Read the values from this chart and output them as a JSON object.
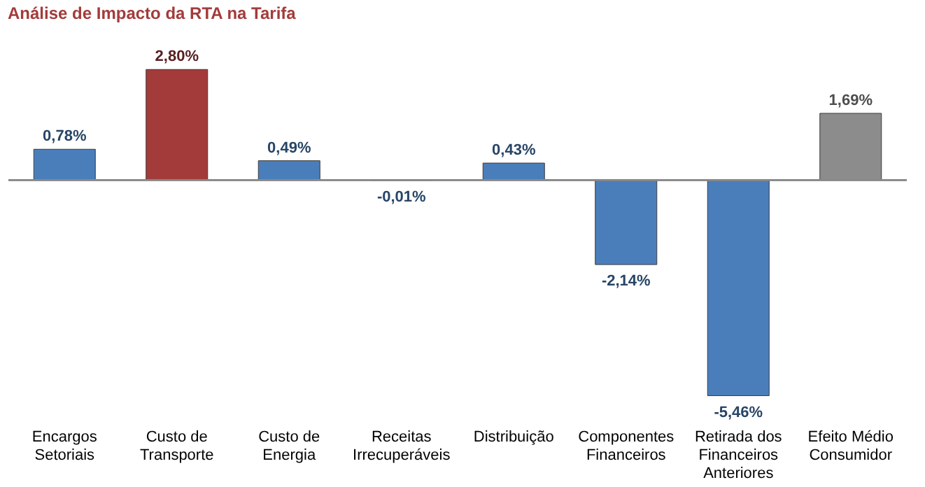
{
  "chart_data": {
    "type": "bar",
    "title": "Análise de Impacto da RTA na Tarifa",
    "categories": [
      "Encargos\nSetoriais",
      "Custo de\nTransporte",
      "Custo de\nEnergia",
      "Receitas\nIrrecuperáveis",
      "Distribuição",
      "Componentes\nFinanceiros",
      "Retirada dos\nFinanceiros\nAnteriores",
      "Efeito Médio\nConsumidor"
    ],
    "values": [
      0.78,
      2.8,
      0.49,
      -0.01,
      0.43,
      -2.14,
      -5.46,
      1.69
    ],
    "value_labels": [
      "0,78%",
      "2,80%",
      "0,49%",
      "-0,01%",
      "0,43%",
      "-2,14%",
      "-5,46%",
      "1,69%"
    ],
    "colors": [
      "#4a7ebb",
      "#a33b3b",
      "#4a7ebb",
      "#4a7ebb",
      "#4a7ebb",
      "#4a7ebb",
      "#4a7ebb",
      "#8c8c8c"
    ],
    "grid": false
  }
}
